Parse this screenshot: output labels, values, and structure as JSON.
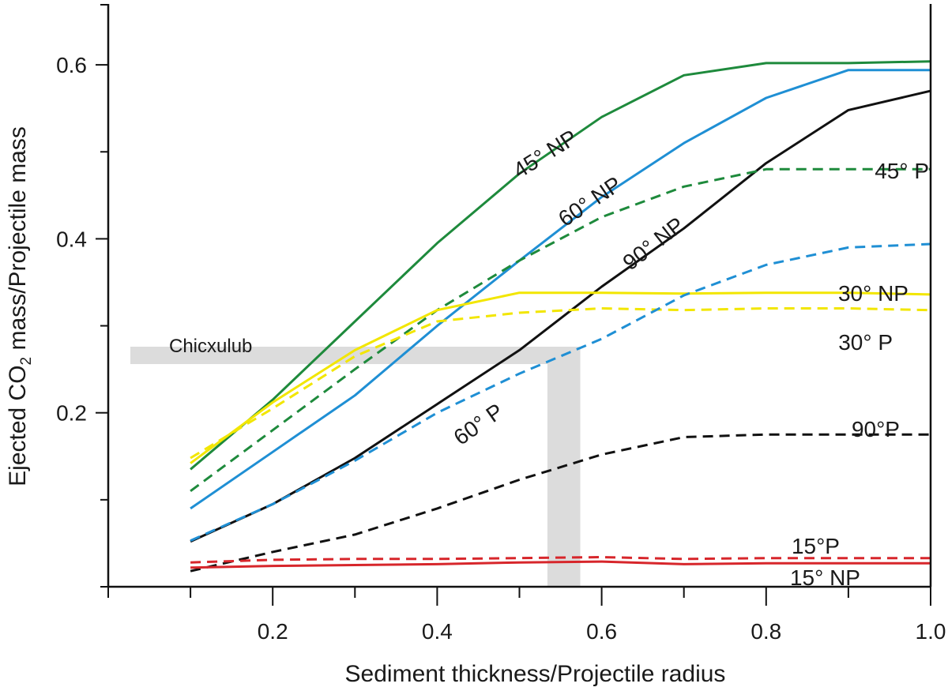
{
  "chart_data": {
    "type": "line",
    "xlabel": "Sediment thickness/Projectile radius",
    "ylabel_parts": [
      "Ejected CO",
      "2",
      " mass/Projectile mass"
    ],
    "xlim": [
      0,
      1.0
    ],
    "ylim": [
      0,
      0.67
    ],
    "x_ticks": [
      0.2,
      0.4,
      0.6,
      0.8,
      1.0
    ],
    "x_tick_labels": [
      "0.2",
      "0.4",
      "0.6",
      "0.8",
      "1.0"
    ],
    "x_minor_ticks": [
      0.1,
      0.3,
      0.5,
      0.7,
      0.9
    ],
    "y_ticks": [
      0.2,
      0.4,
      0.6
    ],
    "y_tick_labels": [
      "0.2",
      "0.4",
      "0.6"
    ],
    "y_minor_ticks": [
      0.1,
      0.3,
      0.5
    ],
    "grid": false,
    "x": [
      0.1,
      0.2,
      0.3,
      0.4,
      0.5,
      0.6,
      0.7,
      0.8,
      0.9,
      1.0
    ],
    "series": [
      {
        "name": "45° NP",
        "color": "#1e8a3c",
        "dash": "solid",
        "values": [
          0.135,
          0.215,
          0.305,
          0.395,
          0.475,
          0.54,
          0.588,
          0.602,
          0.602,
          0.604
        ]
      },
      {
        "name": "60° NP",
        "color": "#1f8fd4",
        "dash": "solid",
        "values": [
          0.09,
          0.155,
          0.22,
          0.3,
          0.375,
          0.448,
          0.51,
          0.562,
          0.594,
          0.594
        ]
      },
      {
        "name": "90° NP",
        "color": "#111111",
        "dash": "solid",
        "values": [
          0.052,
          0.095,
          0.148,
          0.21,
          0.272,
          0.345,
          0.412,
          0.487,
          0.548,
          0.57
        ]
      },
      {
        "name": "45° P",
        "color": "#1e8a3c",
        "dash": "dashed",
        "values": [
          0.11,
          0.18,
          0.25,
          0.318,
          0.375,
          0.425,
          0.46,
          0.48,
          0.48,
          0.48
        ]
      },
      {
        "name": "30° NP",
        "color": "#f2e600",
        "dash": "solid",
        "values": [
          0.142,
          0.212,
          0.272,
          0.318,
          0.338,
          0.338,
          0.337,
          0.338,
          0.338,
          0.336
        ]
      },
      {
        "name": "30° P",
        "color": "#f2e600",
        "dash": "dashed",
        "values": [
          0.148,
          0.205,
          0.265,
          0.305,
          0.315,
          0.32,
          0.318,
          0.32,
          0.32,
          0.318
        ]
      },
      {
        "name": "60° P",
        "color": "#1f8fd4",
        "dash": "dashed",
        "values": [
          0.053,
          0.095,
          0.145,
          0.2,
          0.245,
          0.285,
          0.335,
          0.37,
          0.39,
          0.394
        ]
      },
      {
        "name": "90°P",
        "color": "#111111",
        "dash": "dashed",
        "values": [
          0.018,
          0.04,
          0.06,
          0.09,
          0.123,
          0.152,
          0.172,
          0.175,
          0.175,
          0.175
        ]
      },
      {
        "name": "15°P",
        "color": "#d7262b",
        "dash": "dashed",
        "values": [
          0.028,
          0.031,
          0.032,
          0.032,
          0.033,
          0.034,
          0.032,
          0.033,
          0.033,
          0.033
        ]
      },
      {
        "name": "15° NP",
        "color": "#d7262b",
        "dash": "solid",
        "values": [
          0.022,
          0.024,
          0.025,
          0.026,
          0.028,
          0.029,
          0.026,
          0.027,
          0.027,
          0.027
        ]
      }
    ],
    "annotations": {
      "chicxulub": {
        "label": "Chicxulub",
        "y": 0.266,
        "y_band": [
          0.256,
          0.276
        ],
        "x_band": [
          0.534,
          0.574
        ],
        "color": "#dcdcdc"
      }
    }
  }
}
